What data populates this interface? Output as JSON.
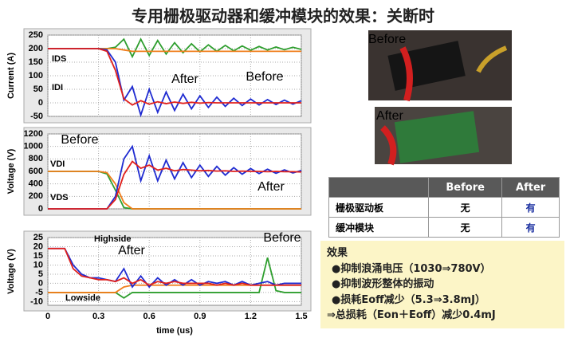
{
  "title": "专用栅极驱动器和缓冲模块的效果：关断时",
  "chart_data": [
    {
      "type": "line",
      "ylabel": "Current (A)",
      "x": [
        0,
        0.05,
        0.1,
        0.15,
        0.2,
        0.25,
        0.3,
        0.35,
        0.4,
        0.45,
        0.5,
        0.55,
        0.6,
        0.65,
        0.7,
        0.75,
        0.8,
        0.85,
        0.9,
        0.95,
        1.0,
        1.05,
        1.1,
        1.15,
        1.2,
        1.25,
        1.3,
        1.35,
        1.4,
        1.45,
        1.5
      ],
      "xlim": [
        0,
        1.5
      ],
      "xticks": [
        0,
        0.3,
        0.6,
        0.9,
        1.2,
        1.5
      ],
      "ylim": [
        -50,
        250
      ],
      "yticks": [
        -50,
        0,
        50,
        100,
        150,
        200,
        250
      ],
      "grid": true,
      "annotations": [
        "IDS",
        "IDI",
        "After",
        "Before"
      ],
      "series": [
        {
          "color": "#2e9e2e",
          "values": [
            200,
            200,
            200,
            200,
            200,
            200,
            200,
            200,
            205,
            235,
            170,
            235,
            175,
            230,
            180,
            222,
            185,
            218,
            188,
            214,
            190,
            212,
            192,
            210,
            194,
            208,
            195,
            206,
            196,
            205,
            197
          ]
        },
        {
          "color": "#f07d1a",
          "values": [
            200,
            200,
            200,
            200,
            200,
            200,
            200,
            200,
            200,
            195,
            190,
            190,
            190,
            190,
            190,
            190,
            190,
            190,
            190,
            190,
            190,
            190,
            190,
            190,
            190,
            190,
            190,
            190,
            190,
            190,
            190
          ]
        },
        {
          "color": "#1f2bd1",
          "values": [
            200,
            200,
            200,
            200,
            200,
            200,
            200,
            195,
            150,
            10,
            60,
            -45,
            50,
            -35,
            40,
            -28,
            32,
            -22,
            26,
            -17,
            21,
            -13,
            17,
            -10,
            14,
            -8,
            12,
            -6,
            10,
            -5,
            8
          ]
        },
        {
          "color": "#e0201c",
          "values": [
            200,
            200,
            200,
            200,
            200,
            200,
            200,
            190,
            120,
            15,
            -8,
            8,
            -5,
            4,
            -3,
            3,
            -2,
            2,
            -1,
            1,
            0,
            0,
            0,
            0,
            0,
            0,
            0,
            0,
            0,
            0,
            0
          ]
        }
      ]
    },
    {
      "type": "line",
      "ylabel": "Voltage (V)",
      "x": [
        0,
        0.05,
        0.1,
        0.15,
        0.2,
        0.25,
        0.3,
        0.35,
        0.4,
        0.45,
        0.5,
        0.55,
        0.6,
        0.65,
        0.7,
        0.75,
        0.8,
        0.85,
        0.9,
        0.95,
        1.0,
        1.05,
        1.1,
        1.15,
        1.2,
        1.25,
        1.3,
        1.35,
        1.4,
        1.45,
        1.5
      ],
      "xlim": [
        0,
        1.5
      ],
      "xticks": [
        0,
        0.3,
        0.6,
        0.9,
        1.2,
        1.5
      ],
      "ylim": [
        0,
        1200
      ],
      "yticks": [
        0,
        200,
        400,
        600,
        800,
        1000,
        1200
      ],
      "grid": true,
      "annotations": [
        "Before",
        "VDI",
        "VDS",
        "After"
      ],
      "series": [
        {
          "color": "#2e9e2e",
          "values": [
            600,
            600,
            600,
            600,
            600,
            600,
            600,
            560,
            300,
            20,
            0,
            0,
            0,
            0,
            0,
            0,
            0,
            0,
            0,
            0,
            0,
            0,
            0,
            0,
            0,
            0,
            0,
            0,
            0,
            0,
            0
          ]
        },
        {
          "color": "#f07d1a",
          "values": [
            600,
            600,
            600,
            600,
            600,
            600,
            600,
            580,
            400,
            100,
            0,
            0,
            0,
            0,
            0,
            0,
            0,
            0,
            0,
            0,
            0,
            0,
            0,
            0,
            0,
            0,
            0,
            0,
            0,
            0,
            0
          ]
        },
        {
          "color": "#1f2bd1",
          "values": [
            0,
            0,
            0,
            0,
            0,
            0,
            0,
            0,
            200,
            800,
            1000,
            450,
            850,
            450,
            780,
            480,
            740,
            500,
            700,
            520,
            680,
            540,
            660,
            555,
            645,
            565,
            635,
            570,
            625,
            575,
            615
          ]
        },
        {
          "color": "#e0201c",
          "values": [
            0,
            0,
            0,
            0,
            0,
            0,
            0,
            0,
            150,
            550,
            760,
            650,
            700,
            620,
            650,
            610,
            630,
            620,
            610,
            615,
            605,
            610,
            600,
            605,
            600,
            600,
            595,
            600,
            595,
            595,
            590
          ]
        }
      ]
    },
    {
      "type": "line",
      "ylabel": "Voltage (V)",
      "xlabel": "time (us)",
      "x": [
        0,
        0.05,
        0.1,
        0.15,
        0.2,
        0.25,
        0.3,
        0.35,
        0.4,
        0.45,
        0.5,
        0.55,
        0.6,
        0.65,
        0.7,
        0.75,
        0.8,
        0.85,
        0.9,
        0.95,
        1.0,
        1.05,
        1.1,
        1.15,
        1.2,
        1.25,
        1.3,
        1.35,
        1.4,
        1.45,
        1.5
      ],
      "xlim": [
        0,
        1.5
      ],
      "xticks": [
        0,
        0.3,
        0.6,
        0.9,
        1.2,
        1.5
      ],
      "ylim": [
        -12,
        25
      ],
      "yticks": [
        -10,
        -5,
        0,
        5,
        10,
        15,
        20,
        25
      ],
      "grid": true,
      "annotations": [
        "Highside",
        "Lowside",
        "After",
        "Before"
      ],
      "series": [
        {
          "color": "#2e9e2e",
          "values": [
            -5,
            -5,
            -5,
            -5,
            -5,
            -5,
            -5,
            -5,
            -5,
            -8,
            -5,
            -5,
            -5,
            -5,
            -5,
            -5,
            -5,
            -5,
            -5,
            -5,
            -5,
            -5,
            -5,
            -5,
            -5,
            -5,
            14,
            -4,
            -5,
            -5,
            -5
          ]
        },
        {
          "color": "#f07d1a",
          "values": [
            -5,
            -5,
            -5,
            -5,
            -5,
            -5,
            -5,
            -5,
            -5,
            -2,
            -1,
            -1,
            -1,
            -1,
            -1,
            -1,
            -1,
            -1,
            -1,
            -1,
            -1,
            -1,
            -1,
            -1,
            -1,
            -1,
            -1,
            -1,
            -1,
            -1,
            -1
          ]
        },
        {
          "color": "#1f2bd1",
          "values": [
            19,
            19,
            19,
            10,
            5,
            3,
            3,
            2,
            1,
            8,
            -2,
            4,
            -2,
            3,
            -1,
            2,
            -1,
            2,
            -1,
            1,
            0,
            1,
            -1,
            1,
            -1,
            0,
            1,
            -1,
            0,
            0,
            0
          ]
        },
        {
          "color": "#e0201c",
          "values": [
            19,
            19,
            19,
            8,
            4,
            3,
            2,
            2,
            1,
            3,
            0,
            2,
            -1,
            1,
            0,
            1,
            0,
            0,
            0,
            0,
            -1,
            0,
            -1,
            0,
            -1,
            -1,
            -1,
            -1,
            -1,
            -1,
            -1
          ]
        }
      ]
    }
  ],
  "photos": [
    "Before",
    "After"
  ],
  "table": {
    "columns": [
      "Before",
      "After"
    ],
    "rows": [
      [
        "栅极驱动板",
        "无",
        "有"
      ],
      [
        "缓冲模块",
        "无",
        "有"
      ]
    ]
  },
  "effects": {
    "title": "效果",
    "items": [
      "●抑制浪涌电压（1030⇒780V）",
      "●抑制波形整体的振动",
      "●损耗Eoff减少（5.3⇒3.8mJ）",
      "⇒总损耗（Eon＋Eoff）减少0.4mJ"
    ]
  }
}
